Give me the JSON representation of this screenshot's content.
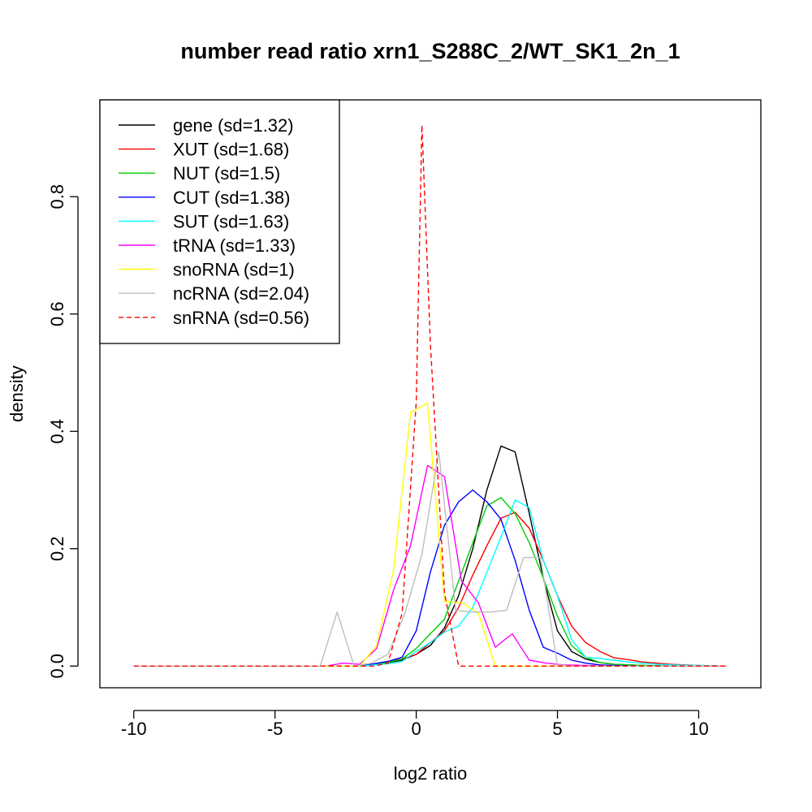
{
  "chart_data": {
    "type": "line",
    "title": "number read ratio xrn1_S288C_2/WT_SK1_2n_1",
    "xlabel": "log2 ratio",
    "ylabel": "density",
    "xlim": [
      -11.2,
      12.2
    ],
    "ylim": [
      -0.037,
      0.965
    ],
    "x_ticks": [
      -10,
      -5,
      0,
      5,
      10
    ],
    "y_ticks": [
      0.0,
      0.2,
      0.4,
      0.6,
      0.8
    ],
    "x_tick_labels": [
      "-10",
      "-5",
      "0",
      "5",
      "10"
    ],
    "y_tick_labels": [
      "0.0",
      "0.2",
      "0.4",
      "0.6",
      "0.8"
    ],
    "grid": false,
    "legend_position": "top-left",
    "series": [
      {
        "name": "gene (sd=1.32)",
        "color": "#000000",
        "dash": "solid",
        "x": [
          -10,
          -5,
          -3,
          -2,
          -1.5,
          -1,
          -0.5,
          0,
          0.5,
          1,
          1.5,
          2,
          2.5,
          3,
          3.5,
          4,
          4.5,
          5,
          5.5,
          6,
          6.5,
          7,
          8,
          9,
          10,
          11
        ],
        "y": [
          0,
          0,
          0,
          0,
          0.002,
          0.005,
          0.01,
          0.02,
          0.035,
          0.065,
          0.12,
          0.2,
          0.3,
          0.375,
          0.365,
          0.26,
          0.15,
          0.06,
          0.025,
          0.012,
          0.006,
          0.003,
          0.001,
          0,
          0,
          0
        ]
      },
      {
        "name": "XUT (sd=1.68)",
        "color": "#ff0000",
        "dash": "solid",
        "x": [
          -10,
          -5,
          -3,
          -2,
          -1.5,
          -1,
          -0.5,
          0,
          0.5,
          1,
          1.5,
          2,
          2.5,
          3,
          3.5,
          4,
          4.5,
          5,
          5.5,
          6,
          6.5,
          7,
          7.5,
          8,
          9,
          10,
          11
        ],
        "y": [
          0,
          0,
          0,
          0,
          0.003,
          0.008,
          0.012,
          0.02,
          0.04,
          0.06,
          0.1,
          0.155,
          0.205,
          0.252,
          0.262,
          0.235,
          0.18,
          0.12,
          0.068,
          0.04,
          0.025,
          0.014,
          0.011,
          0.007,
          0.003,
          0.001,
          0
        ]
      },
      {
        "name": "NUT (sd=1.5)",
        "color": "#00cd00",
        "dash": "solid",
        "x": [
          -10,
          -5,
          -3,
          -2,
          -1.5,
          -1,
          -0.5,
          0,
          0.5,
          1,
          1.5,
          2,
          2.5,
          3,
          3.5,
          4,
          4.5,
          5,
          5.5,
          6,
          6.5,
          7,
          8,
          9,
          10,
          11
        ],
        "y": [
          0,
          0,
          0,
          0,
          0.002,
          0.006,
          0.012,
          0.03,
          0.055,
          0.08,
          0.145,
          0.21,
          0.273,
          0.287,
          0.26,
          0.21,
          0.15,
          0.085,
          0.035,
          0.015,
          0.006,
          0.003,
          0.001,
          0,
          0,
          0
        ]
      },
      {
        "name": "CUT (sd=1.38)",
        "color": "#0000ff",
        "dash": "solid",
        "x": [
          -10,
          -5,
          -3,
          -2,
          -1.5,
          -1,
          -0.5,
          0,
          0.5,
          1,
          1.5,
          2,
          2.5,
          3,
          3.5,
          4,
          4.5,
          5,
          5.5,
          6,
          6.5,
          7,
          8,
          9,
          10,
          11
        ],
        "y": [
          0,
          0,
          0,
          0,
          0.004,
          0.008,
          0.015,
          0.06,
          0.16,
          0.24,
          0.28,
          0.3,
          0.28,
          0.25,
          0.18,
          0.095,
          0.032,
          0.022,
          0.01,
          0.005,
          0.002,
          0.001,
          0,
          0,
          0,
          0
        ]
      },
      {
        "name": "SUT (sd=1.63)",
        "color": "#00ffff",
        "dash": "solid",
        "x": [
          -10,
          -5,
          -3,
          -2,
          -1.5,
          -1,
          -0.5,
          0,
          0.5,
          1,
          1.5,
          2,
          2.5,
          3,
          3.5,
          4,
          4.5,
          5,
          5.5,
          6,
          6.5,
          7,
          7.5,
          8,
          8.5,
          9,
          10,
          11
        ],
        "y": [
          0,
          0,
          0,
          0,
          0.002,
          0.004,
          0.008,
          0.025,
          0.04,
          0.058,
          0.068,
          0.1,
          0.16,
          0.22,
          0.283,
          0.27,
          0.18,
          0.12,
          0.045,
          0.015,
          0.013,
          0.01,
          0.007,
          0.005,
          0.003,
          0.002,
          0.001,
          0
        ]
      },
      {
        "name": "tRNA (sd=1.33)",
        "color": "#ff00ff",
        "dash": "solid",
        "x": [
          -10,
          -5,
          -3.2,
          -2.6,
          -2,
          -1.4,
          -0.8,
          -0.2,
          0.4,
          1,
          1.6,
          2.2,
          2.8,
          3.4,
          4,
          4.6,
          5.2,
          6,
          7,
          8,
          9,
          10,
          11
        ],
        "y": [
          0,
          0,
          0,
          0.005,
          0.003,
          0.03,
          0.13,
          0.205,
          0.342,
          0.323,
          0.145,
          0.108,
          0.032,
          0.055,
          0.01,
          0.005,
          0.002,
          0.001,
          0,
          0,
          0,
          0,
          0
        ]
      },
      {
        "name": "snoRNA (sd=1)",
        "color": "#ffff00",
        "dash": "solid",
        "x": [
          -10,
          -5,
          -3,
          -2,
          -1.4,
          -0.8,
          -0.2,
          0.4,
          1,
          1.6,
          2.2,
          2.8,
          3.4,
          4,
          5,
          6,
          7,
          8,
          9,
          10,
          11
        ],
        "y": [
          0,
          0,
          0,
          0,
          0.035,
          0.165,
          0.432,
          0.448,
          0.11,
          0.108,
          0.09,
          0.0,
          0,
          0,
          0,
          0,
          0,
          0,
          0,
          0,
          0
        ]
      },
      {
        "name": "ncRNA (sd=2.04)",
        "color": "#bebebe",
        "dash": "solid",
        "x": [
          -10,
          -5,
          -3.4,
          -2.8,
          -2.2,
          -1.6,
          -1,
          -0.4,
          0.2,
          0.8,
          1.4,
          2,
          2.6,
          3.2,
          3.8,
          4.4,
          5,
          5.6,
          6,
          7,
          8,
          9,
          10,
          11
        ],
        "y": [
          0,
          0,
          0,
          0.092,
          0.0,
          0.005,
          0.02,
          0.09,
          0.19,
          0.365,
          0.095,
          0.092,
          0.092,
          0.095,
          0.185,
          0.185,
          0.002,
          0,
          0,
          0,
          0,
          0,
          0,
          0
        ]
      },
      {
        "name": "snRNA (sd=0.56)",
        "color": "#ff0000",
        "dash": "dashed",
        "x": [
          -10,
          -5,
          -2,
          -1.5,
          -1,
          -0.5,
          0,
          0.2,
          0.5,
          1,
          1.5,
          2,
          3,
          5,
          8,
          11
        ],
        "y": [
          0,
          0,
          0,
          0,
          0.005,
          0.09,
          0.45,
          0.922,
          0.55,
          0.125,
          0.0,
          0,
          0,
          0,
          0,
          0
        ]
      }
    ]
  }
}
